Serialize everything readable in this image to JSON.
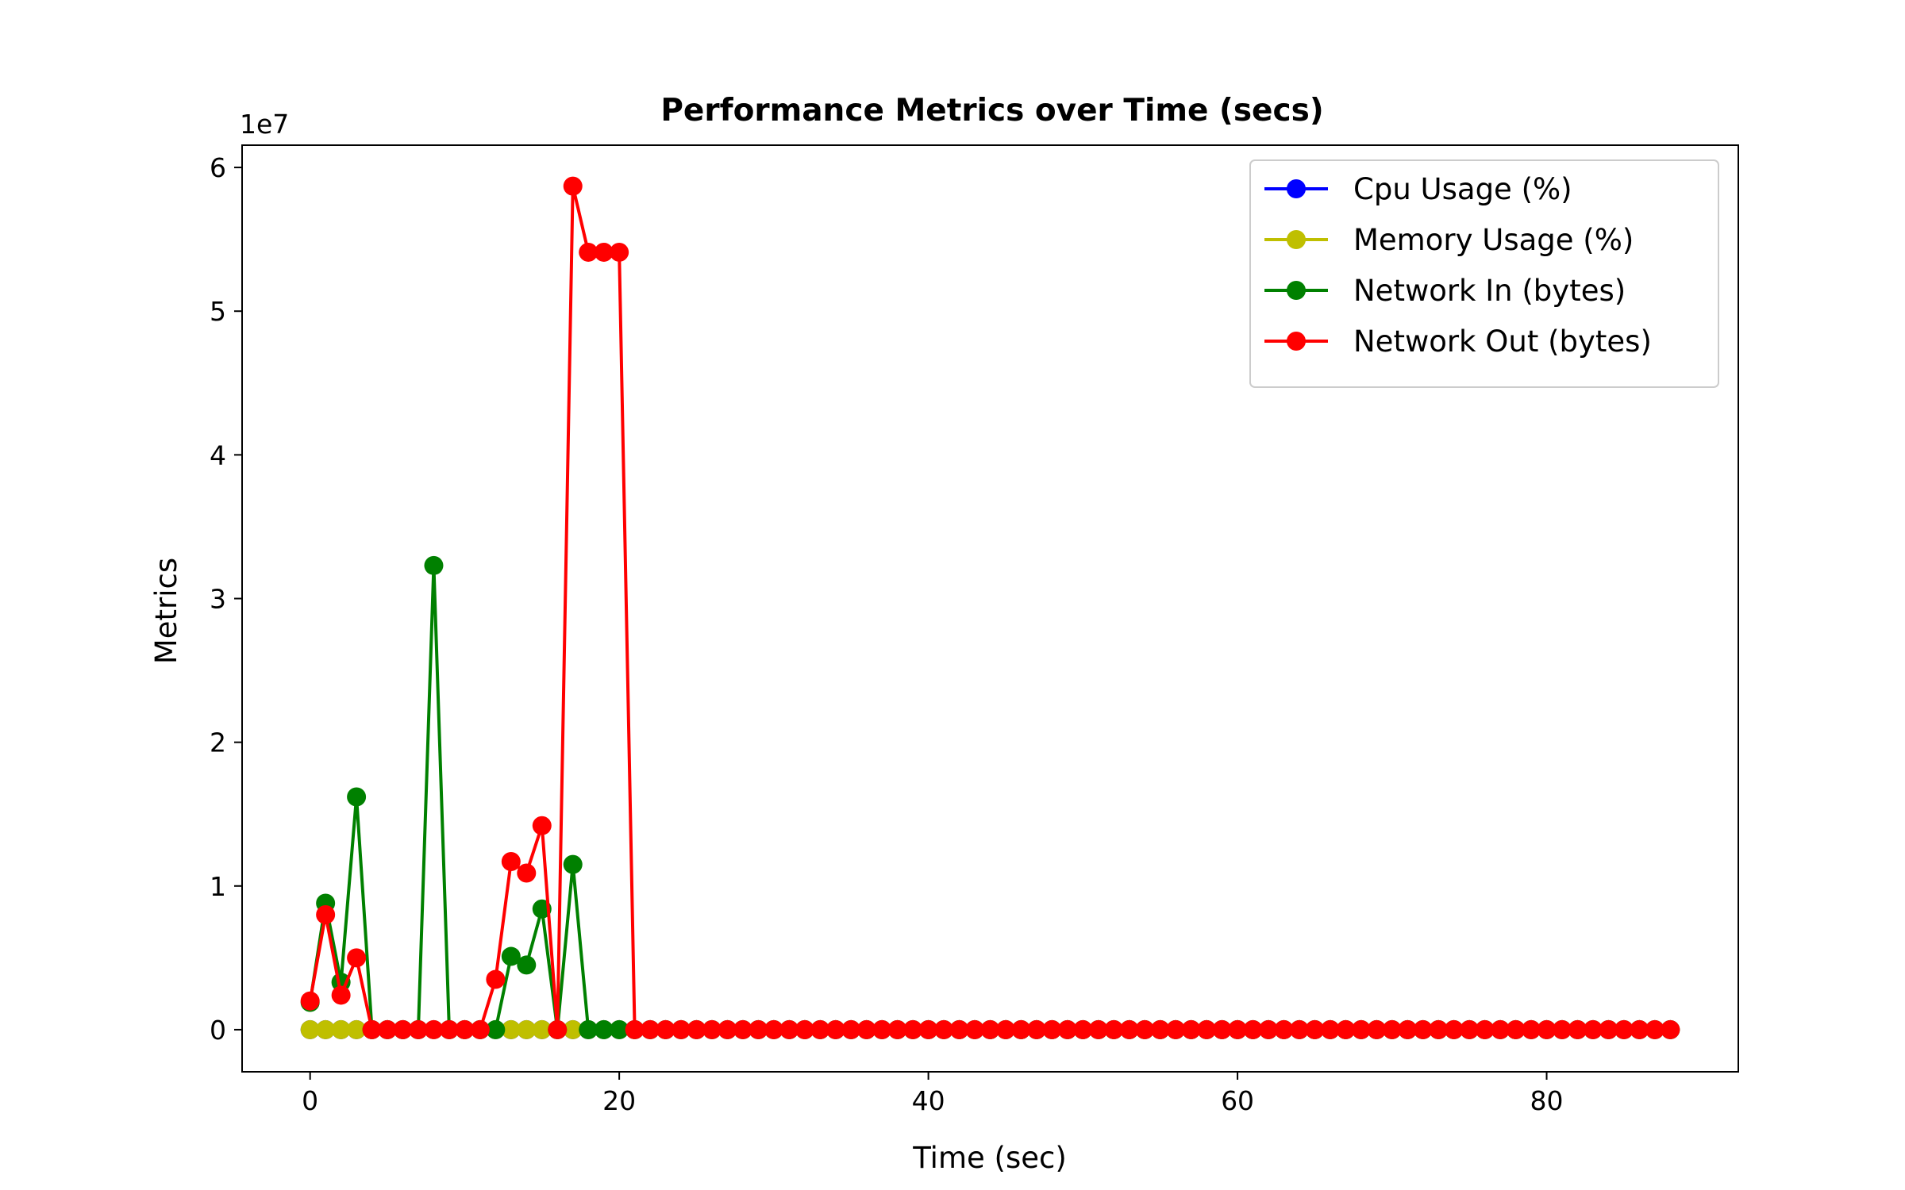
{
  "chart_data": {
    "type": "line",
    "title": "Performance Metrics over Time (secs)",
    "xlabel": "Time (sec)",
    "ylabel": "Metrics",
    "y_offset_label": "1e7",
    "xlim": [
      -4.4,
      92.4
    ],
    "ylim": [
      -2930000,
      61550000
    ],
    "xticks": [
      0,
      20,
      40,
      60,
      80
    ],
    "xtick_labels": [
      "0",
      "20",
      "40",
      "60",
      "80"
    ],
    "yticks": [
      0,
      10000000,
      20000000,
      30000000,
      40000000,
      50000000,
      60000000
    ],
    "ytick_labels": [
      "0",
      "1",
      "2",
      "3",
      "4",
      "5",
      "6"
    ],
    "grid": false,
    "legend_position": "top-right",
    "x_start": 0,
    "x_end": 88,
    "series": [
      {
        "name": "Cpu Usage (%)",
        "color": "#0000ff",
        "values_default": 0,
        "points": {}
      },
      {
        "name": "Memory Usage (%)",
        "color": "#bfbf00",
        "values_default": 0,
        "points": {}
      },
      {
        "name": "Network In (bytes)",
        "color": "#008000",
        "values_default": 0,
        "points": {
          "0": 1900000,
          "1": 8800000,
          "2": 3300000,
          "3": 16200000,
          "8": 32300000,
          "13": 5100000,
          "14": 4500000,
          "15": 8400000,
          "17": 11500000
        }
      },
      {
        "name": "Network Out (bytes)",
        "color": "#ff0000",
        "values_default": 0,
        "points": {
          "0": 2000000,
          "1": 8000000,
          "2": 2400000,
          "3": 5000000,
          "12": 3500000,
          "13": 11700000,
          "14": 10900000,
          "15": 14200000,
          "17": 58700000,
          "18": 54100000,
          "19": 54100000,
          "20": 54100000
        }
      }
    ]
  }
}
